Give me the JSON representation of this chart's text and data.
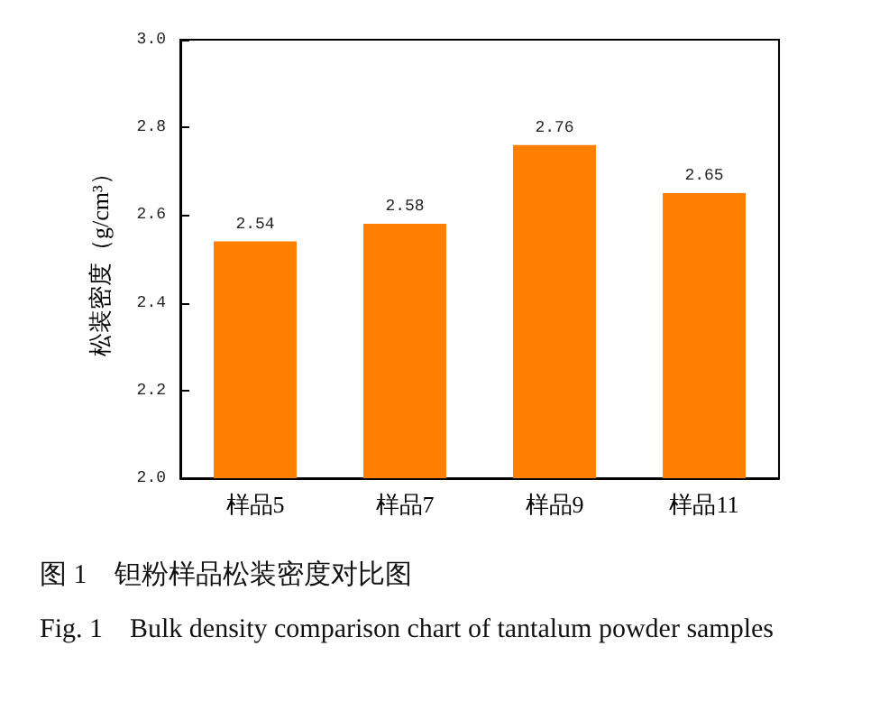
{
  "chart_data": {
    "type": "bar",
    "ylabel": "松装密度（g/cm³）",
    "categories": [
      "样品5",
      "样品7",
      "样品9",
      "样品11"
    ],
    "values": [
      2.54,
      2.58,
      2.76,
      2.65
    ],
    "color": "#ff8000",
    "ylim": [
      2.0,
      3.0
    ],
    "yticks": [
      {
        "value": 2,
        "label": "2.0"
      },
      {
        "value": 2.2,
        "label": "2.2"
      },
      {
        "value": 2.4,
        "label": "2.4"
      },
      {
        "value": 2.6,
        "label": "2.6"
      },
      {
        "value": 2.8,
        "label": "2.8"
      },
      {
        "value": 3,
        "label": "3.0"
      }
    ],
    "data_labels": true,
    "grid": false,
    "annotations": [
      "图 1    钽粉样品松装密度对比图",
      "Fig. 1    Bulk density comparison chart of tantalum powder samples"
    ]
  }
}
